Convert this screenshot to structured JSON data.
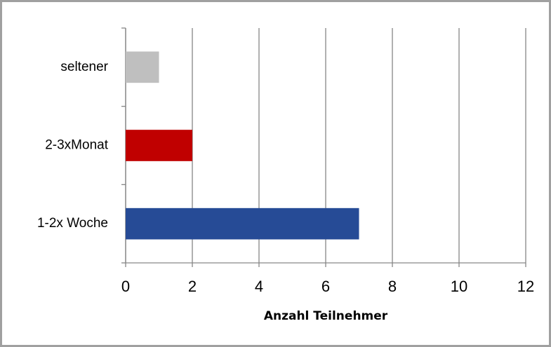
{
  "chart_data": {
    "type": "barh",
    "categories": [
      "1-2x Woche",
      "2-3xMonat",
      "seltener"
    ],
    "values": [
      7,
      2,
      1
    ],
    "colors": [
      "#264b96",
      "#c00000",
      "#bfbfbf"
    ],
    "xlabel": "Anzahl Teilnehmer",
    "xlim": [
      0,
      12
    ],
    "xticks": [
      0,
      2,
      4,
      6,
      8,
      10,
      12
    ],
    "grid": true
  }
}
